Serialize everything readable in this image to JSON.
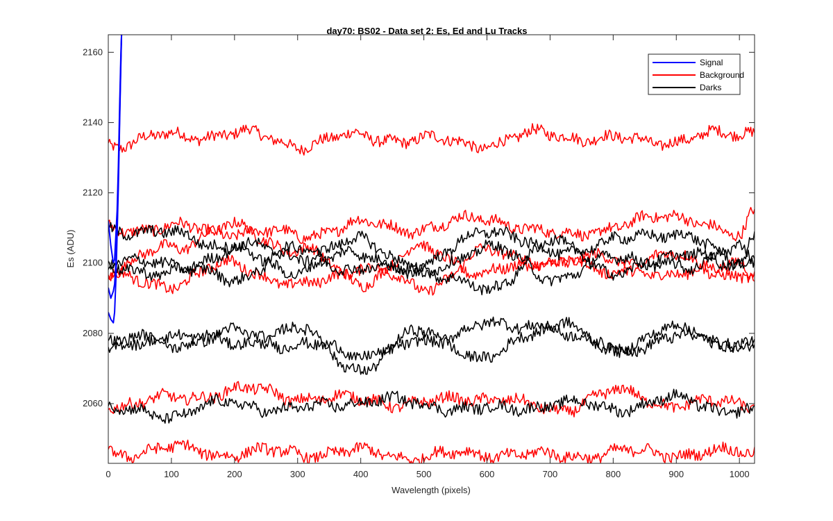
{
  "chart_data": {
    "type": "line",
    "title": "day70: BS02 - Data set 2: Es, Ed and Lu Tracks",
    "xlabel": "Wavelength (pixels)",
    "ylabel": "Es (ADU)",
    "xlim": [
      0,
      1024
    ],
    "ylim": [
      2043,
      2165
    ],
    "xticks": [
      0,
      100,
      200,
      300,
      400,
      500,
      600,
      700,
      800,
      900,
      1000
    ],
    "yticks": [
      2060,
      2080,
      2100,
      2120,
      2140,
      2160
    ],
    "grid": false,
    "legend_position": "top-right",
    "legend": [
      {
        "label": "Signal",
        "color": "#0000ff"
      },
      {
        "label": "Background",
        "color": "#ff0000"
      },
      {
        "label": "Darks",
        "color": "#000000"
      }
    ],
    "series": [
      {
        "name": "Signal",
        "color": "#0000ff",
        "kind": "signal",
        "x": [
          0,
          4,
          8,
          10,
          12,
          14,
          16,
          18,
          20,
          21
        ],
        "tracks": [
          [
            2112,
            2105,
            2100,
            2101,
            2108,
            2115,
            2128,
            2145,
            2160,
            2165
          ],
          [
            2093,
            2090,
            2092,
            2094,
            2100,
            2110,
            2125,
            2142,
            2158,
            2165
          ],
          [
            2086,
            2084,
            2083,
            2086,
            2095,
            2108,
            2122,
            2140,
            2157,
            2165
          ]
        ]
      },
      {
        "name": "Background",
        "color": "#ff0000",
        "kind": "tracks",
        "x": [
          0,
          100,
          200,
          300,
          400,
          500,
          600,
          700,
          800,
          900,
          1000,
          1024
        ],
        "tracks": [
          [
            2134,
            2136,
            2137,
            2134,
            2136,
            2135,
            2134,
            2137,
            2135,
            2135,
            2137,
            2138
          ],
          [
            2110,
            2110,
            2109,
            2108,
            2111,
            2110,
            2113,
            2108,
            2110,
            2114,
            2107,
            2115
          ],
          [
            2097,
            2105,
            2110,
            2104,
            2095,
            2104,
            2097,
            2101,
            2101,
            2096,
            2101,
            2096
          ],
          [
            2096,
            2094,
            2100,
            2093,
            2099,
            2093,
            2103,
            2100,
            2098,
            2102,
            2096,
            2095
          ],
          [
            2060,
            2061,
            2064,
            2062,
            2061,
            2060,
            2062,
            2058,
            2063,
            2060,
            2060,
            2060
          ],
          [
            2046,
            2047,
            2046,
            2046,
            2046,
            2045,
            2046,
            2045,
            2046,
            2046,
            2046,
            2046
          ]
        ]
      },
      {
        "name": "Darks",
        "color": "#000000",
        "kind": "tracks",
        "x": [
          0,
          100,
          200,
          300,
          400,
          500,
          600,
          700,
          800,
          900,
          1000,
          1024
        ],
        "tracks": [
          [
            2110,
            2108,
            2105,
            2102,
            2106,
            2099,
            2110,
            2103,
            2106,
            2109,
            2100,
            2108
          ],
          [
            2101,
            2099,
            2103,
            2098,
            2103,
            2097,
            2105,
            2096,
            2101,
            2102,
            2100,
            2103
          ],
          [
            2098,
            2098,
            2096,
            2104,
            2098,
            2098,
            2092,
            2106,
            2098,
            2099,
            2104,
            2099
          ],
          [
            2077,
            2080,
            2077,
            2081,
            2070,
            2078,
            2082,
            2083,
            2076,
            2081,
            2077,
            2076
          ],
          [
            2076,
            2077,
            2080,
            2077,
            2074,
            2080,
            2073,
            2082,
            2075,
            2079,
            2077,
            2078
          ],
          [
            2058,
            2057,
            2060,
            2058,
            2061,
            2060,
            2058,
            2060,
            2059,
            2061,
            2058,
            2057
          ]
        ]
      }
    ]
  }
}
